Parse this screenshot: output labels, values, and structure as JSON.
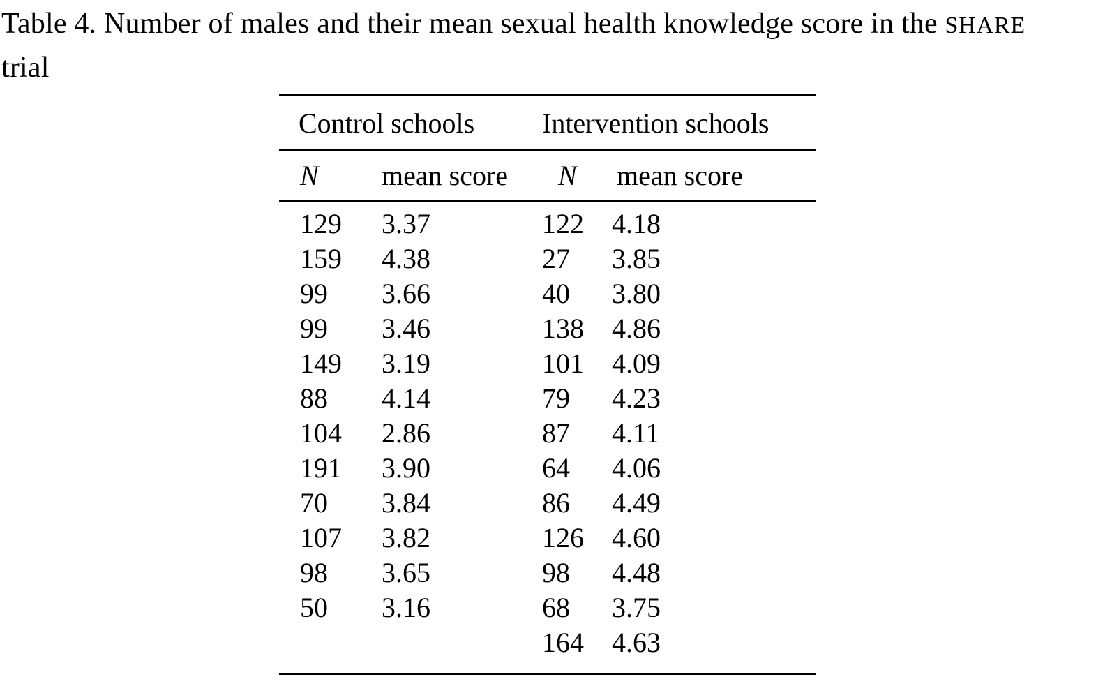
{
  "page": {
    "background_color": "#ffffff",
    "text_color": "#000000"
  },
  "caption": {
    "line1_prefix": "Table 4. Number of males and their mean sexual health knowledge score in the ",
    "line1_smallcaps": "SHARE",
    "line2": "trial"
  },
  "table": {
    "group_headers": [
      {
        "label": "Control schools"
      },
      {
        "label": "Intervention schools"
      }
    ],
    "column_headers": [
      "N",
      "mean score",
      "N",
      "mean score"
    ],
    "rows": [
      {
        "c_n": "129",
        "c_mean": "3.37",
        "i_n": "122",
        "i_mean": "4.18"
      },
      {
        "c_n": "159",
        "c_mean": "4.38",
        "i_n": "27",
        "i_mean": "3.85"
      },
      {
        "c_n": "99",
        "c_mean": "3.66",
        "i_n": "40",
        "i_mean": "3.80"
      },
      {
        "c_n": "99",
        "c_mean": "3.46",
        "i_n": "138",
        "i_mean": "4.86"
      },
      {
        "c_n": "149",
        "c_mean": "3.19",
        "i_n": "101",
        "i_mean": "4.09"
      },
      {
        "c_n": "88",
        "c_mean": "4.14",
        "i_n": "79",
        "i_mean": "4.23"
      },
      {
        "c_n": "104",
        "c_mean": "2.86",
        "i_n": "87",
        "i_mean": "4.11"
      },
      {
        "c_n": "191",
        "c_mean": "3.90",
        "i_n": "64",
        "i_mean": "4.06"
      },
      {
        "c_n": "70",
        "c_mean": "3.84",
        "i_n": "86",
        "i_mean": "4.49"
      },
      {
        "c_n": "107",
        "c_mean": "3.82",
        "i_n": "126",
        "i_mean": "4.60"
      },
      {
        "c_n": "98",
        "c_mean": "3.65",
        "i_n": "98",
        "i_mean": "4.48"
      },
      {
        "c_n": "50",
        "c_mean": "3.16",
        "i_n": "68",
        "i_mean": "3.75"
      },
      {
        "c_n": "",
        "c_mean": "",
        "i_n": "164",
        "i_mean": "4.63"
      }
    ]
  }
}
